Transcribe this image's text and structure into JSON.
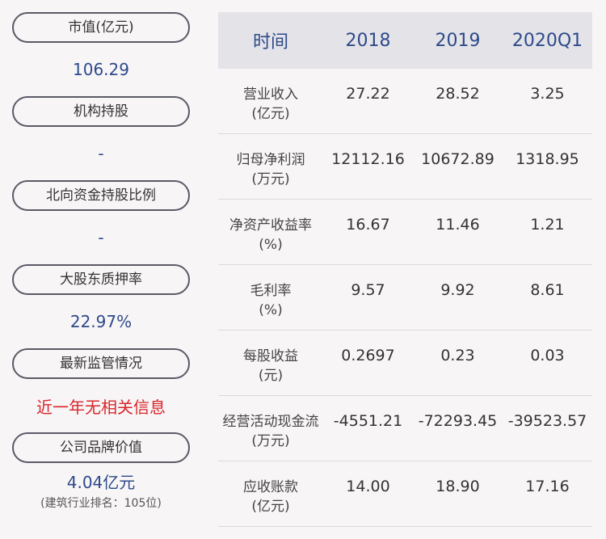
{
  "left": {
    "market_cap_label": "市值(亿元)",
    "market_cap_value": "106.29",
    "institution_label": "机构持股",
    "institution_value": "-",
    "northbound_label": "北向资金持股比例",
    "northbound_value": "-",
    "pledge_label": "大股东质押率",
    "pledge_value": "22.97%",
    "supervision_label": "最新监管情况",
    "supervision_value": "近一年无相关信息",
    "brand_label": "公司品牌价值",
    "brand_value": "4.04亿元",
    "brand_rank": "(建筑行业排名：105位)"
  },
  "table": {
    "headers": [
      "时间",
      "2018",
      "2019",
      "2020Q1"
    ],
    "rows": [
      {
        "label1": "营业收入",
        "label2": "(亿元)",
        "values": [
          "27.22",
          "28.52",
          "3.25"
        ]
      },
      {
        "label1": "归母净利润",
        "label2": "(万元)",
        "values": [
          "12112.16",
          "10672.89",
          "1318.95"
        ]
      },
      {
        "label1": "净资产收益率",
        "label2": "(%)",
        "values": [
          "16.67",
          "11.46",
          "1.21"
        ]
      },
      {
        "label1": "毛利率",
        "label2": "(%)",
        "values": [
          "9.57",
          "9.92",
          "8.61"
        ]
      },
      {
        "label1": "每股收益",
        "label2": "(元)",
        "values": [
          "0.2697",
          "0.23",
          "0.03"
        ]
      },
      {
        "label1": "经营活动现金流",
        "label2": "(万元)",
        "values": [
          "-4551.21",
          "-72293.45",
          "-39523.57"
        ]
      },
      {
        "label1": "应收账款",
        "label2": "(亿元)",
        "values": [
          "14.00",
          "18.90",
          "17.16"
        ]
      }
    ]
  },
  "colors": {
    "accent_blue": "#2d4a8a",
    "alert_red": "#d8262b",
    "header_bg": "#e4e3e8",
    "page_bg": "#f8f5f7"
  }
}
